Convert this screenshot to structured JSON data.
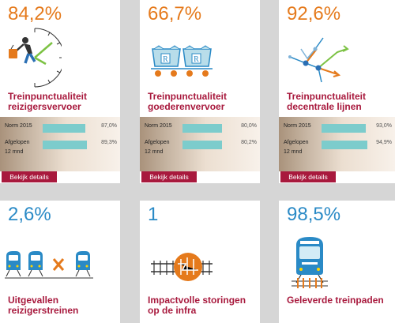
{
  "cards": [
    {
      "value": "84,2%",
      "title_line1": "Treinpunctualiteit",
      "title_line2": "reizigersvervoer",
      "norm_label": "Norm 2015",
      "norm_value": "87,0%",
      "norm_fraction": 0.87,
      "last_label": "Afgelopen",
      "last_sublabel": "12 mnd",
      "last_value": "89,3%",
      "last_fraction": 0.893,
      "button": "Bekijk details",
      "icon": "traveler-clock-icon"
    },
    {
      "value": "66,7%",
      "title_line1": "Treinpunctualiteit",
      "title_line2": "goederenvervoer",
      "norm_label": "Norm 2015",
      "norm_value": "80,0%",
      "norm_fraction": 0.8,
      "last_label": "Afgelopen",
      "last_sublabel": "12 mnd",
      "last_value": "80,2%",
      "last_fraction": 0.802,
      "button": "Bekijk details",
      "icon": "freight-wagons-icon",
      "wagon_letter": "R"
    },
    {
      "value": "92,6%",
      "title_line1": "Treinpunctualiteit",
      "title_line2": "decentrale lijnen",
      "norm_label": "Norm 2015",
      "norm_value": "93,0%",
      "norm_fraction": 0.93,
      "last_label": "Afgelopen",
      "last_sublabel": "12 mnd",
      "last_value": "94,9%",
      "last_fraction": 0.949,
      "button": "Bekijk details",
      "icon": "network-arrows-icon"
    },
    {
      "value": "2,6%",
      "title_line1": "Uitgevallen",
      "title_line2": "reizigerstreinen",
      "icon": "cancelled-trains-icon"
    },
    {
      "value": "1",
      "title_line1": "Impactvolle storingen",
      "title_line2": "op de infra",
      "icon": "infra-disruption-icon"
    },
    {
      "value": "98,5%",
      "title_line1": "Geleverde treinpaden",
      "title_line2": "",
      "icon": "train-front-icon"
    }
  ],
  "colors": {
    "orange": "#e57a1c",
    "blue": "#2a8ac6",
    "maroon": "#a8193d",
    "teal": "#7ccccc"
  }
}
